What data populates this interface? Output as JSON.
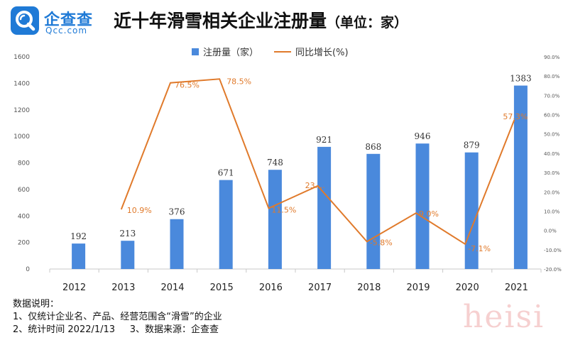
{
  "brand": {
    "name": "企查查",
    "sub": "Qcc.com",
    "color": "#1f7ad6",
    "icon": "qcc-magnifier-icon"
  },
  "title": {
    "main": "近十年滑雪相关企业注册量",
    "sub": "（单位：家）"
  },
  "legend": {
    "bar_label": "注册量（家）",
    "line_label": "同比增长(%)"
  },
  "colors": {
    "bar": "#4a89dc",
    "line": "#e07a2b"
  },
  "chart_data": {
    "type": "bar",
    "categories": [
      "2012",
      "2013",
      "2014",
      "2015",
      "2016",
      "2017",
      "2018",
      "2019",
      "2020",
      "2021"
    ],
    "series": [
      {
        "name": "注册量（家）",
        "type": "bar",
        "values": [
          192,
          213,
          376,
          671,
          748,
          921,
          868,
          946,
          879,
          1383
        ],
        "labels": [
          "192",
          "213",
          "376",
          "671",
          "748",
          "921",
          "868",
          "946",
          "879",
          "1383"
        ]
      },
      {
        "name": "同比增长(%)",
        "type": "line",
        "values": [
          null,
          10.9,
          76.5,
          78.5,
          11.5,
          23.1,
          -5.8,
          9.0,
          -7.1,
          57.3
        ],
        "labels": [
          "",
          "10.9%",
          "76.5%",
          "78.5%",
          "11.5%",
          "23....",
          "-5.8%",
          "9.0%",
          "-7.1%",
          "57.3%"
        ]
      }
    ],
    "y_left": {
      "min": 0,
      "max": 1600,
      "ticks": [
        "0",
        "200",
        "400",
        "600",
        "800",
        "1000",
        "1200",
        "1400",
        "1600"
      ]
    },
    "y_right": {
      "min": -20,
      "max": 90,
      "ticks": [
        "-20.0%",
        "-10.0%",
        "0.0%",
        "10.0%",
        "20.0%",
        "30.0%",
        "40.0%",
        "50.0%",
        "60.0%",
        "70.0%",
        "80.0%",
        "90.0%"
      ]
    },
    "grid": false,
    "legend_position": "top-center"
  },
  "notes": {
    "heading": "数据说明：",
    "line1": "1、仅统计企业名、产品、经营范围含“滑雪”的企业",
    "line2": "2、统计时间 2022/1/13     3、数据来源：企查查"
  },
  "watermark": "heisi"
}
